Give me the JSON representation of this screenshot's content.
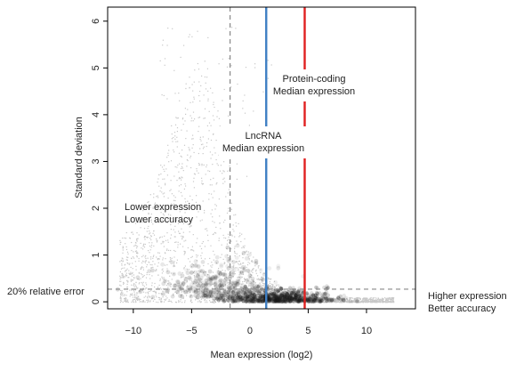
{
  "chart_data": {
    "type": "scatter",
    "title": "",
    "xlabel": "Mean expression (log2)",
    "ylabel": "Standard deviation",
    "xlim": [
      -12.2,
      14.2
    ],
    "ylim": [
      -0.15,
      6.3
    ],
    "x_ticks": [
      -10,
      -5,
      0,
      5,
      10
    ],
    "y_ticks": [
      0,
      1,
      2,
      3,
      4,
      5,
      6
    ],
    "grid": false,
    "legend": "none",
    "point_color": "#c8c8c8",
    "density_color": "#1a1a1a",
    "reference_lines": [
      {
        "orientation": "vertical",
        "x": -1.7,
        "style": "dashed",
        "color": "#888888"
      },
      {
        "orientation": "vertical",
        "x": 1.4,
        "style": "solid",
        "color": "#3f7fc3",
        "label": [
          "LncRNA",
          "Median expression"
        ]
      },
      {
        "orientation": "vertical",
        "x": 4.7,
        "style": "solid",
        "color": "#e02020",
        "label": [
          "Protein-coding",
          "Median expression"
        ]
      },
      {
        "orientation": "horizontal",
        "y": 0.27,
        "style": "dashed",
        "color": "#888888",
        "label": "20%  relative error"
      }
    ],
    "annotations": [
      {
        "x": -9.5,
        "y": 2.0,
        "lines": [
          "Lower expression",
          "Lower accuracy"
        ]
      },
      {
        "x": 13.5,
        "y": 0.0,
        "lines": [
          "Higher expression",
          "Better accuracy"
        ]
      }
    ]
  }
}
